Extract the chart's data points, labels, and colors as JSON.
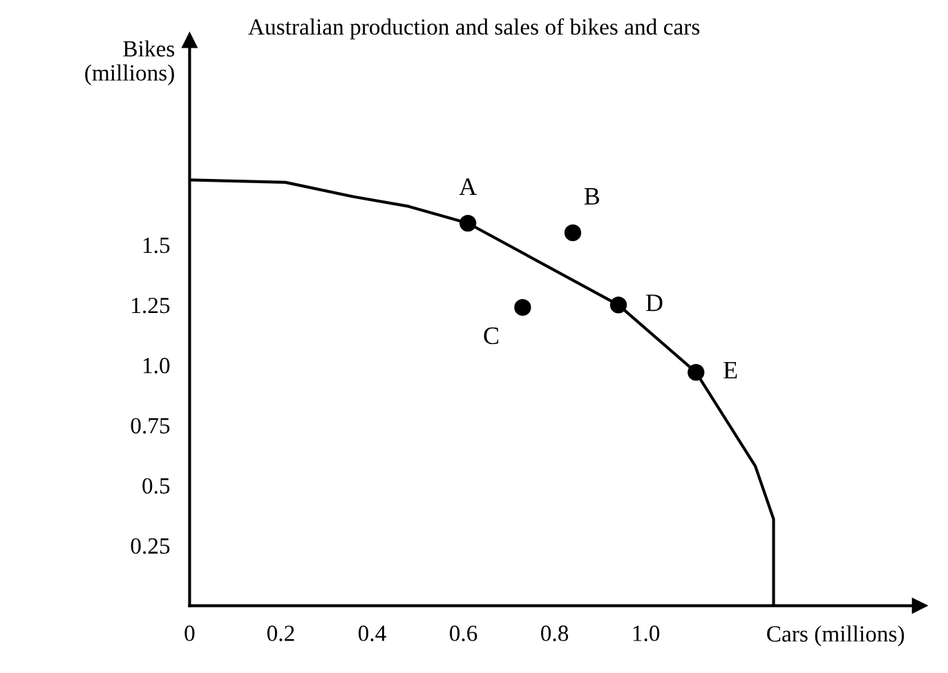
{
  "chart_data": {
    "type": "scatter",
    "title": "Australian production and sales of bikes and cars",
    "xlabel": "Cars (millions)",
    "ylabel": "Bikes\n(millions)",
    "xlim": [
      0,
      1.6
    ],
    "ylim": [
      0,
      2.35
    ],
    "xticks": [
      0,
      0.2,
      0.4,
      0.6,
      0.8,
      {
        "value": 1,
        "label": "1.0"
      }
    ],
    "yticks": [
      0.25,
      0.5,
      0.75,
      {
        "value": 1,
        "label": "1.0"
      },
      1.25,
      1.5
    ],
    "grid": false,
    "legend": false,
    "series": [
      {
        "type": "line",
        "color": "#000000",
        "marker": "none",
        "line_style": "solid",
        "x": [
          0,
          0.21,
          0.36,
          0.48,
          0.61,
          0.94,
          1.11,
          1.24,
          1.28,
          1.28
        ],
        "values": [
          1.77,
          1.76,
          1.7,
          1.66,
          1.59,
          1.25,
          0.97,
          0.58,
          0.36,
          0
        ]
      },
      {
        "color": "#000000",
        "marker": "circle",
        "x": [
          0.61,
          0.84,
          0.73,
          0.94,
          1.11
        ],
        "values": [
          1.59,
          1.55,
          1.24,
          1.25,
          0.97
        ]
      }
    ],
    "annotations": [
      {
        "text": "A",
        "x": 0.61,
        "y": 1.59
      },
      {
        "text": "B",
        "x": 0.84,
        "y": 1.55
      },
      {
        "text": "C",
        "x": 0.73,
        "y": 1.24
      },
      {
        "text": "D",
        "x": 0.94,
        "y": 1.25
      },
      {
        "text": "E",
        "x": 1.11,
        "y": 0.97
      }
    ]
  }
}
